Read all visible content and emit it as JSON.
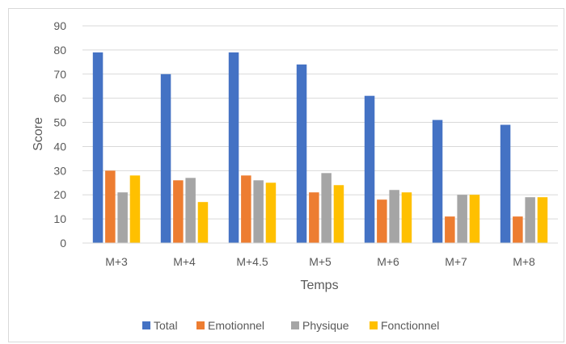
{
  "chart_data": {
    "type": "bar",
    "title": "",
    "xlabel": "Temps",
    "ylabel": "Score",
    "ylim": [
      0,
      90
    ],
    "yticks": [
      0,
      10,
      20,
      30,
      40,
      50,
      60,
      70,
      80,
      90
    ],
    "grid": true,
    "legend_position": "bottom",
    "categories": [
      "M+3",
      "M+4",
      "M+4.5",
      "M+5",
      "M+6",
      "M+7",
      "M+8"
    ],
    "series": [
      {
        "name": "Total",
        "color": "#4472C4",
        "values": [
          79,
          70,
          79,
          74,
          61,
          51,
          49
        ]
      },
      {
        "name": "Emotionnel",
        "color": "#ED7D31",
        "values": [
          30,
          26,
          28,
          21,
          18,
          11,
          11
        ]
      },
      {
        "name": "Physique",
        "color": "#A5A5A5",
        "values": [
          21,
          27,
          26,
          29,
          22,
          20,
          19
        ]
      },
      {
        "name": "Fonctionnel",
        "color": "#FFC000",
        "values": [
          28,
          17,
          25,
          24,
          21,
          20,
          19
        ]
      }
    ]
  }
}
